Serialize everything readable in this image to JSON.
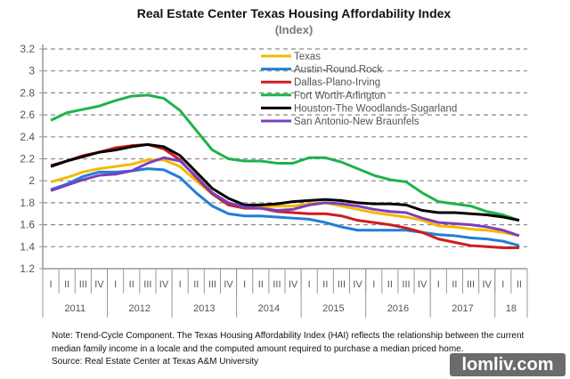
{
  "chart_data": {
    "type": "line",
    "title": "Real Estate Center Texas Housing Affordability Index",
    "subtitle": "(Index)",
    "ylim": [
      1.2,
      3.2
    ],
    "yticks": [
      "1.2",
      "1.4",
      "1.6",
      "1.8",
      "2",
      "2.2",
      "2.4",
      "2.6",
      "2.8",
      "3",
      "3.2"
    ],
    "grid": "horizontal dashed",
    "legend_position": "top-right",
    "x_quarters": [
      "I",
      "II",
      "III",
      "IV",
      "I",
      "II",
      "III",
      "IV",
      "I",
      "II",
      "III",
      "IV",
      "I",
      "II",
      "III",
      "IV",
      "I",
      "II",
      "III",
      "IV",
      "I",
      "II",
      "III",
      "IV",
      "I",
      "II",
      "III",
      "IV",
      "I",
      "II"
    ],
    "x_years": [
      {
        "label": "2011",
        "quarters": 4
      },
      {
        "label": "2012",
        "quarters": 4
      },
      {
        "label": "2013",
        "quarters": 4
      },
      {
        "label": "2014",
        "quarters": 4
      },
      {
        "label": "2015",
        "quarters": 4
      },
      {
        "label": "2016",
        "quarters": 4
      },
      {
        "label": "2017",
        "quarters": 4
      },
      {
        "label": "18",
        "quarters": 2
      }
    ],
    "series": [
      {
        "name": "Texas",
        "color": "#f5b800",
        "values": [
          1.99,
          2.03,
          2.08,
          2.11,
          2.13,
          2.15,
          2.19,
          2.19,
          2.13,
          2.0,
          1.88,
          1.8,
          1.76,
          1.76,
          1.77,
          1.77,
          1.79,
          1.8,
          1.77,
          1.74,
          1.71,
          1.69,
          1.67,
          1.64,
          1.59,
          1.58,
          1.56,
          1.55,
          1.53,
          1.5
        ]
      },
      {
        "name": "Austin-Round Rock",
        "color": "#1f7fd6",
        "values": [
          1.92,
          1.97,
          2.04,
          2.08,
          2.08,
          2.09,
          2.11,
          2.1,
          2.03,
          1.89,
          1.77,
          1.7,
          1.68,
          1.68,
          1.67,
          1.66,
          1.65,
          1.62,
          1.58,
          1.55,
          1.55,
          1.55,
          1.55,
          1.53,
          1.51,
          1.5,
          1.48,
          1.47,
          1.45,
          1.41
        ]
      },
      {
        "name": "Dallas-Plano-Irving",
        "color": "#d01c1c",
        "values": [
          2.14,
          2.18,
          2.23,
          2.26,
          2.3,
          2.32,
          2.33,
          2.29,
          2.19,
          2.03,
          1.88,
          1.78,
          1.75,
          1.75,
          1.72,
          1.71,
          1.7,
          1.7,
          1.68,
          1.64,
          1.62,
          1.6,
          1.57,
          1.53,
          1.47,
          1.44,
          1.41,
          1.4,
          1.39,
          1.39
        ]
      },
      {
        "name": "Fort Worth-Arlington",
        "color": "#1db34a",
        "values": [
          2.55,
          2.62,
          2.65,
          2.68,
          2.73,
          2.77,
          2.78,
          2.75,
          2.64,
          2.46,
          2.28,
          2.2,
          2.18,
          2.18,
          2.16,
          2.16,
          2.21,
          2.21,
          2.17,
          2.11,
          2.05,
          2.01,
          1.99,
          1.89,
          1.81,
          1.79,
          1.77,
          1.72,
          1.69,
          1.64
        ]
      },
      {
        "name": "Houston-The Woodlands-Sugarland",
        "color": "#000000",
        "values": [
          2.13,
          2.18,
          2.22,
          2.26,
          2.28,
          2.31,
          2.33,
          2.31,
          2.23,
          2.08,
          1.93,
          1.84,
          1.78,
          1.78,
          1.79,
          1.81,
          1.82,
          1.83,
          1.82,
          1.8,
          1.79,
          1.79,
          1.78,
          1.73,
          1.71,
          1.71,
          1.7,
          1.69,
          1.67,
          1.64
        ]
      },
      {
        "name": "San Antonio-New Braunfels",
        "color": "#7b3fbf",
        "values": [
          1.91,
          1.96,
          2.01,
          2.05,
          2.06,
          2.09,
          2.16,
          2.21,
          2.18,
          2.04,
          1.89,
          1.8,
          1.76,
          1.75,
          1.73,
          1.74,
          1.78,
          1.8,
          1.79,
          1.77,
          1.74,
          1.72,
          1.71,
          1.66,
          1.62,
          1.61,
          1.6,
          1.58,
          1.55,
          1.5
        ]
      }
    ]
  },
  "note": {
    "line1": "Note: Trend-Cycle Component. The Texas Housing Affordability Index (HAI) reflects the relationship between the current",
    "line2": "median family income in a locale and the computed amount required to purchase a median priced home.",
    "line3": "Source: Real Estate Center at Texas A&M University"
  },
  "watermark": "lomliv.com"
}
